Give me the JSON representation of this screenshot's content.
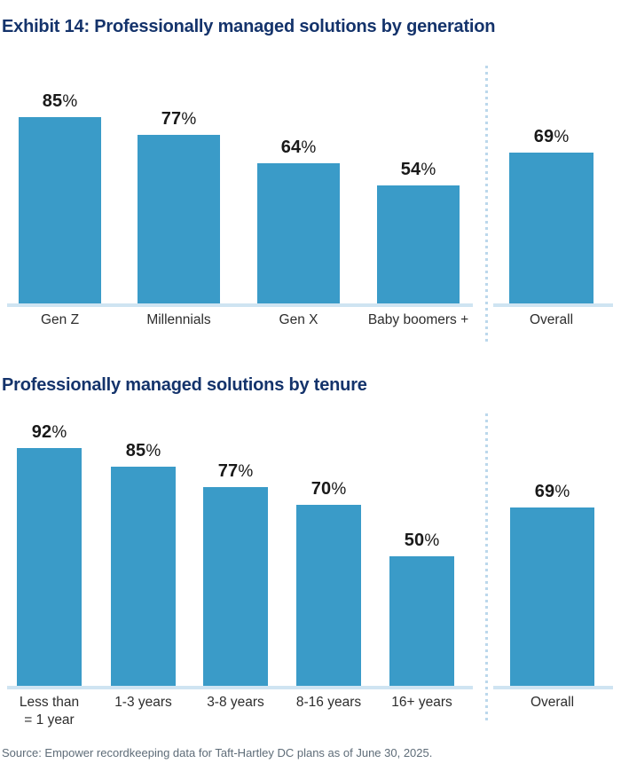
{
  "page": {
    "source_note": "Source: Empower recordkeeping data for Taft-Hartley DC plans as of June 30, 2025.",
    "percent_sign": "%"
  },
  "colors": {
    "bar": "#3a9bc8",
    "title_navy": "#14336b",
    "value_label": "#191919",
    "tick_label": "#2d2d2d",
    "axis_line": "#cfe4f2",
    "dotted_line": "#bcd8ec",
    "source_text": "#5e6c78"
  },
  "chart_data": [
    {
      "type": "bar",
      "title": "Exhibit 14: Professionally managed solutions by generation",
      "categories": [
        "Gen Z",
        "Millennials",
        "Gen X",
        "Baby boomers +"
      ],
      "values": [
        85,
        77,
        64,
        54
      ],
      "overall_category": "Overall",
      "overall_value": 69,
      "unit": "%",
      "ylim": [
        0,
        100
      ],
      "grid": false,
      "legend": "none",
      "value_labels": "above bars, bold, number bold + lighter % sign",
      "separator": "vertical dotted line between group bars and Overall bar"
    },
    {
      "type": "bar",
      "title": "Professionally managed solutions by tenure",
      "categories": [
        "Less than\n= 1 year",
        "1-3 years",
        "3-8 years",
        "8-16 years",
        "16+ years"
      ],
      "values": [
        92,
        85,
        77,
        70,
        50
      ],
      "overall_category": "Overall",
      "overall_value": 69,
      "unit": "%",
      "ylim": [
        0,
        100
      ],
      "grid": false,
      "legend": "none",
      "value_labels": "above bars, bold, number bold + lighter % sign",
      "separator": "vertical dotted line between group bars and Overall bar"
    }
  ]
}
